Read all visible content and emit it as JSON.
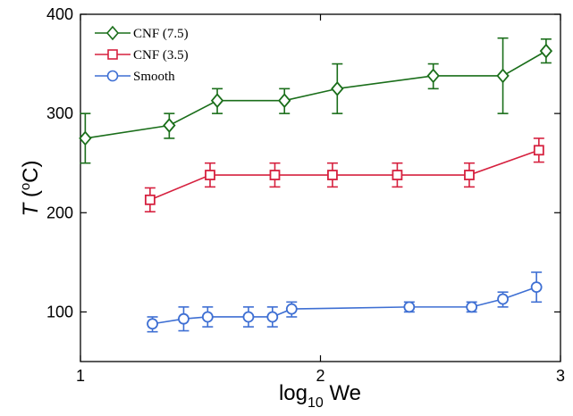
{
  "chart_data": {
    "type": "line",
    "xlabel": {
      "main": "log",
      "sub": "10",
      "rest": " We"
    },
    "ylabel": {
      "italic": "T",
      "open": " (",
      "sup": "o",
      "rest": "C)"
    },
    "xlim": [
      1,
      3
    ],
    "ylim": [
      50,
      400
    ],
    "xticks": [
      1,
      2,
      3
    ],
    "yticks": [
      100,
      200,
      300,
      400
    ],
    "grid": false,
    "legend": "top-left",
    "series": [
      {
        "name": "CNF (7.5)",
        "color": "#1a6e1a",
        "marker": "diamond",
        "points": [
          {
            "x": 1.02,
            "y": 275,
            "err": [
              25,
              25
            ]
          },
          {
            "x": 1.37,
            "y": 288,
            "err": [
              13,
              12
            ]
          },
          {
            "x": 1.57,
            "y": 313,
            "err": [
              13,
              12
            ]
          },
          {
            "x": 1.85,
            "y": 313,
            "err": [
              13,
              12
            ]
          },
          {
            "x": 2.07,
            "y": 325,
            "err": [
              25,
              25
            ]
          },
          {
            "x": 2.47,
            "y": 338,
            "err": [
              13,
              12
            ]
          },
          {
            "x": 2.76,
            "y": 338,
            "err": [
              38,
              38
            ]
          },
          {
            "x": 2.94,
            "y": 363,
            "err": [
              12,
              12
            ]
          }
        ]
      },
      {
        "name": "CNF (3.5)",
        "color": "#d6213f",
        "marker": "square",
        "points": [
          {
            "x": 1.29,
            "y": 213,
            "err": [
              12,
              12
            ]
          },
          {
            "x": 1.54,
            "y": 238,
            "err": [
              12,
              12
            ]
          },
          {
            "x": 1.81,
            "y": 238,
            "err": [
              12,
              12
            ]
          },
          {
            "x": 2.05,
            "y": 238,
            "err": [
              12,
              12
            ]
          },
          {
            "x": 2.32,
            "y": 238,
            "err": [
              12,
              12
            ]
          },
          {
            "x": 2.62,
            "y": 238,
            "err": [
              12,
              12
            ]
          },
          {
            "x": 2.91,
            "y": 263,
            "err": [
              12,
              12
            ]
          }
        ]
      },
      {
        "name": "Smooth",
        "color": "#3e6fd3",
        "marker": "circle",
        "points": [
          {
            "x": 1.3,
            "y": 88,
            "err": [
              8,
              7
            ]
          },
          {
            "x": 1.43,
            "y": 93,
            "err": [
              12,
              12
            ]
          },
          {
            "x": 1.53,
            "y": 95,
            "err": [
              10,
              10
            ]
          },
          {
            "x": 1.7,
            "y": 95,
            "err": [
              10,
              10
            ]
          },
          {
            "x": 1.8,
            "y": 95,
            "err": [
              10,
              10
            ]
          },
          {
            "x": 1.88,
            "y": 103,
            "err": [
              8,
              7
            ]
          },
          {
            "x": 2.37,
            "y": 105,
            "err": [
              5,
              5
            ]
          },
          {
            "x": 2.63,
            "y": 105,
            "err": [
              5,
              5
            ]
          },
          {
            "x": 2.76,
            "y": 113,
            "err": [
              8,
              7
            ]
          },
          {
            "x": 2.9,
            "y": 125,
            "err": [
              15,
              15
            ]
          }
        ]
      }
    ]
  }
}
